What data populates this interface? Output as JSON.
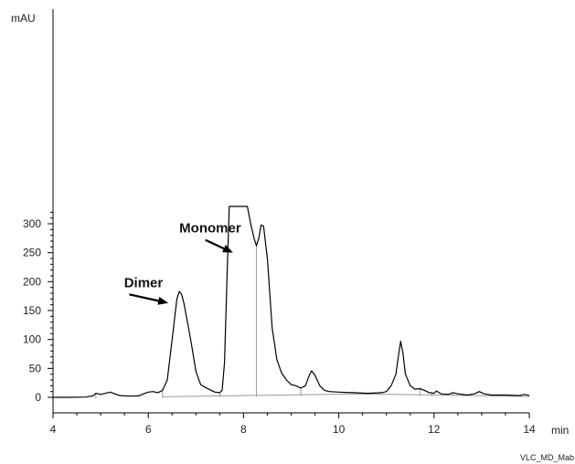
{
  "chart_data": {
    "type": "line",
    "x_unit": "min",
    "y_unit": "mAU",
    "xlim": [
      4,
      14
    ],
    "ylim": [
      -8,
      330
    ],
    "x_ticks": [
      4,
      6,
      8,
      10,
      12,
      14
    ],
    "y_ticks": [
      0,
      50,
      100,
      150,
      200,
      250,
      300
    ],
    "grid": false,
    "series": [
      {
        "points": [
          [
            4.0,
            0
          ],
          [
            4.3,
            0
          ],
          [
            4.7,
            0.5
          ],
          [
            4.85,
            3
          ],
          [
            4.9,
            7
          ],
          [
            4.95,
            6
          ],
          [
            5.0,
            5
          ],
          [
            5.1,
            7
          ],
          [
            5.2,
            9
          ],
          [
            5.3,
            6
          ],
          [
            5.4,
            3
          ],
          [
            5.6,
            2
          ],
          [
            5.8,
            2.5
          ],
          [
            5.9,
            6
          ],
          [
            6.0,
            9
          ],
          [
            6.1,
            10
          ],
          [
            6.2,
            8
          ],
          [
            6.3,
            12
          ],
          [
            6.4,
            30
          ],
          [
            6.5,
            100
          ],
          [
            6.6,
            170
          ],
          [
            6.65,
            183
          ],
          [
            6.7,
            178
          ],
          [
            6.75,
            162
          ],
          [
            6.8,
            140
          ],
          [
            6.9,
            95
          ],
          [
            7.0,
            45
          ],
          [
            7.1,
            22
          ],
          [
            7.2,
            17
          ],
          [
            7.3,
            13
          ],
          [
            7.4,
            9
          ],
          [
            7.5,
            8
          ],
          [
            7.55,
            12
          ],
          [
            7.6,
            60
          ],
          [
            7.65,
            200
          ],
          [
            7.7,
            330
          ],
          [
            7.9,
            330
          ],
          [
            8.08,
            330
          ],
          [
            8.15,
            300
          ],
          [
            8.22,
            275
          ],
          [
            8.27,
            262
          ],
          [
            8.32,
            275
          ],
          [
            8.37,
            298
          ],
          [
            8.42,
            296
          ],
          [
            8.5,
            240
          ],
          [
            8.6,
            120
          ],
          [
            8.7,
            65
          ],
          [
            8.8,
            42
          ],
          [
            8.9,
            30
          ],
          [
            9.0,
            22
          ],
          [
            9.1,
            20
          ],
          [
            9.2,
            16
          ],
          [
            9.3,
            20
          ],
          [
            9.38,
            38
          ],
          [
            9.43,
            46
          ],
          [
            9.5,
            38
          ],
          [
            9.6,
            20
          ],
          [
            9.7,
            12
          ],
          [
            9.8,
            10
          ],
          [
            10.0,
            9
          ],
          [
            10.3,
            8
          ],
          [
            10.6,
            7
          ],
          [
            10.9,
            8
          ],
          [
            11.0,
            10
          ],
          [
            11.1,
            20
          ],
          [
            11.2,
            40
          ],
          [
            11.25,
            70
          ],
          [
            11.3,
            97
          ],
          [
            11.35,
            75
          ],
          [
            11.4,
            40
          ],
          [
            11.5,
            20
          ],
          [
            11.6,
            14
          ],
          [
            11.7,
            15
          ],
          [
            11.8,
            12
          ],
          [
            11.9,
            8
          ],
          [
            12.0,
            7
          ],
          [
            12.05,
            11
          ],
          [
            12.15,
            6
          ],
          [
            12.3,
            5
          ],
          [
            12.4,
            8
          ],
          [
            12.5,
            6
          ],
          [
            12.7,
            4
          ],
          [
            12.85,
            6
          ],
          [
            12.95,
            10
          ],
          [
            13.05,
            6
          ],
          [
            13.2,
            4
          ],
          [
            13.5,
            4
          ],
          [
            13.8,
            3
          ],
          [
            13.9,
            5
          ],
          [
            14.0,
            3
          ]
        ]
      }
    ],
    "baseline": [
      [
        6.3,
        1
      ],
      [
        9.2,
        4.5
      ],
      [
        10.5,
        6
      ],
      [
        12.0,
        4
      ],
      [
        14.0,
        1.5
      ]
    ],
    "drop_lines_x": [
      4.9,
      6.3,
      7.5,
      8.27,
      9.2,
      11.7,
      11.95,
      12.4
    ],
    "annotations": [
      {
        "text": "Monomer",
        "text_x": 7.3,
        "text_y": 285,
        "arrow_from": [
          7.2,
          272
        ],
        "arrow_to": [
          7.78,
          250
        ]
      },
      {
        "text": "Dimer",
        "text_x": 5.9,
        "text_y": 190,
        "arrow_from": [
          5.6,
          178
        ],
        "arrow_to": [
          6.42,
          163
        ]
      }
    ],
    "footnote": "VLC_MD_Mab"
  }
}
